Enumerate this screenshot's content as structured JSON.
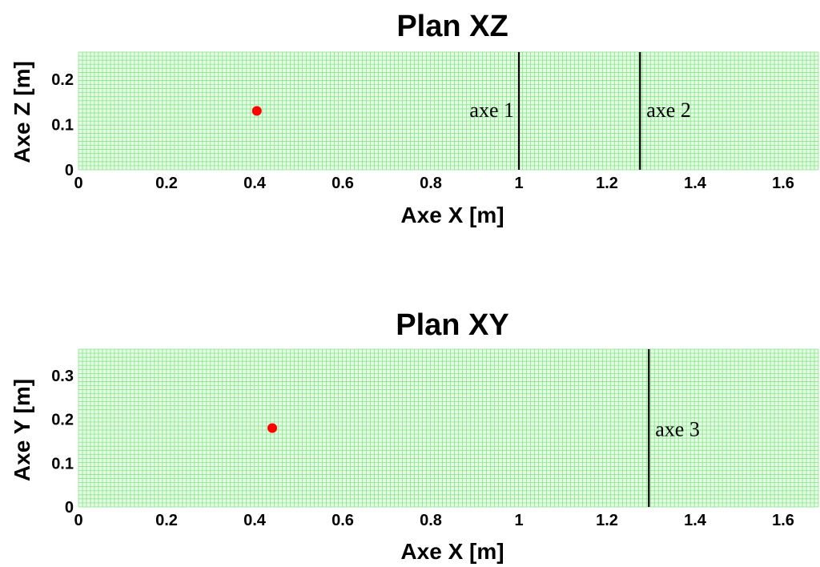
{
  "chart_data": [
    {
      "type": "scatter",
      "title": "Plan XZ",
      "xlabel": "Axe X  [m]",
      "ylabel": "Axe Z  [m]",
      "xlim": [
        0,
        1.68
      ],
      "ylim": [
        0,
        0.26
      ],
      "xticks": [
        "0",
        "0.2",
        "0.4",
        "0.6",
        "0.8",
        "1",
        "1.2",
        "1.4",
        "1.6"
      ],
      "yticks": [
        "0",
        "0.1",
        "0.2"
      ],
      "grid": true,
      "grid_color": "#7fe07f",
      "background": "#e3fce3",
      "point": {
        "x": 0.405,
        "y": 0.13,
        "color": "#ff0000"
      },
      "vlines": [
        {
          "x": 1.0,
          "label": "axe 1",
          "label_side": "left"
        },
        {
          "x": 1.275,
          "label": "axe 2",
          "label_side": "right"
        }
      ]
    },
    {
      "type": "scatter",
      "title": "Plan XY",
      "xlabel": "Axe X [m]",
      "ylabel": "Axe Y [m]",
      "xlim": [
        0,
        1.68
      ],
      "ylim": [
        0,
        0.36
      ],
      "xticks": [
        "0",
        "0.2",
        "0.4",
        "0.6",
        "0.8",
        "1",
        "1.2",
        "1.4",
        "1.6"
      ],
      "yticks": [
        "0",
        "0.1",
        "0.2",
        "0.3"
      ],
      "grid": true,
      "grid_color": "#7fe07f",
      "background": "#e3fce3",
      "point": {
        "x": 0.44,
        "y": 0.18,
        "color": "#ff0000"
      },
      "vlines": [
        {
          "x": 1.295,
          "label": "axe 3",
          "label_side": "right"
        }
      ]
    }
  ]
}
